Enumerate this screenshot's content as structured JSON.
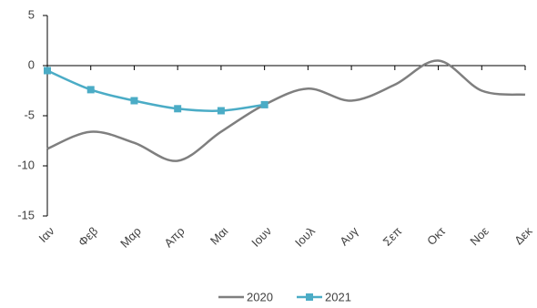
{
  "chart_data": {
    "type": "line",
    "categories": [
      "Ιαν",
      "Φεβ",
      "Μαρ",
      "Απρ",
      "Μαι",
      "Ιουν",
      "Ιουλ",
      "Αυγ",
      "Σεπ",
      "Οκτ",
      "Νοε",
      "Δεκ"
    ],
    "series": [
      {
        "name": "2020",
        "color": "#7f7f7f",
        "values": [
          -8.3,
          -6.6,
          -7.7,
          -9.5,
          -6.6,
          -3.9,
          -2.3,
          -3.5,
          -1.9,
          0.5,
          -2.5,
          -2.9
        ]
      },
      {
        "name": "2021",
        "color": "#4bacc6",
        "values": [
          -0.5,
          -2.4,
          -3.5,
          -4.3,
          -4.5,
          -3.9,
          null,
          null,
          null,
          null,
          null,
          null
        ]
      }
    ],
    "ylim": [
      -15,
      5
    ],
    "yticks": [
      -15,
      -10,
      -5,
      0,
      5
    ],
    "grid": false,
    "legend": "bottom"
  }
}
